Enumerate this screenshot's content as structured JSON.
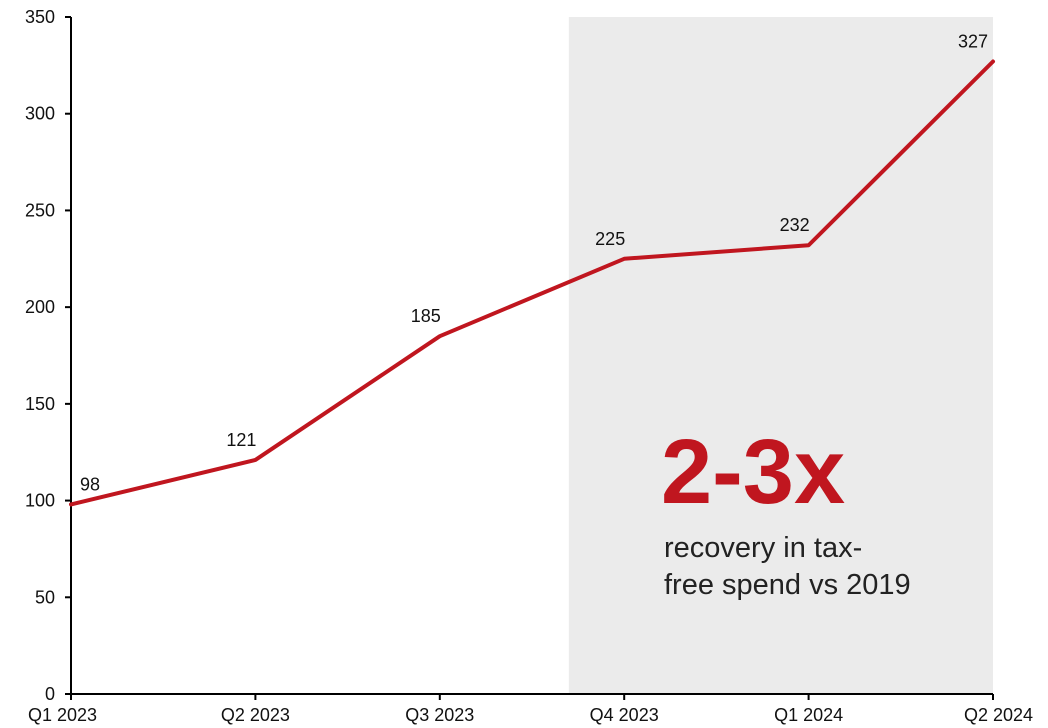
{
  "chart_data": {
    "type": "line",
    "title": "",
    "xlabel": "",
    "ylabel": "",
    "categories": [
      "Q1 2023",
      "Q2 2023",
      "Q3 2023",
      "Q4 2023",
      "Q1 2024",
      "Q2 2024"
    ],
    "series": [
      {
        "values": [
          98,
          121,
          185,
          225,
          232,
          327
        ],
        "color": "#c0161f"
      }
    ],
    "data_labels": [
      "98",
      "121",
      "185",
      "225",
      "232",
      "327"
    ],
    "ylim": [
      0,
      350
    ],
    "yticks": [
      0,
      50,
      100,
      150,
      200,
      250,
      300,
      350
    ],
    "ytick_labels": [
      "0",
      "50",
      "100",
      "150",
      "200",
      "250",
      "300",
      "350"
    ],
    "grid": false,
    "highlight_region": {
      "from": "Q3 2023",
      "to": "Q2 2024",
      "color": "#ebebeb"
    },
    "callout": {
      "headline": "2-3x",
      "headline_color": "#c0161f",
      "line1": "recovery in tax-",
      "line2": "free spend vs 2019"
    }
  }
}
